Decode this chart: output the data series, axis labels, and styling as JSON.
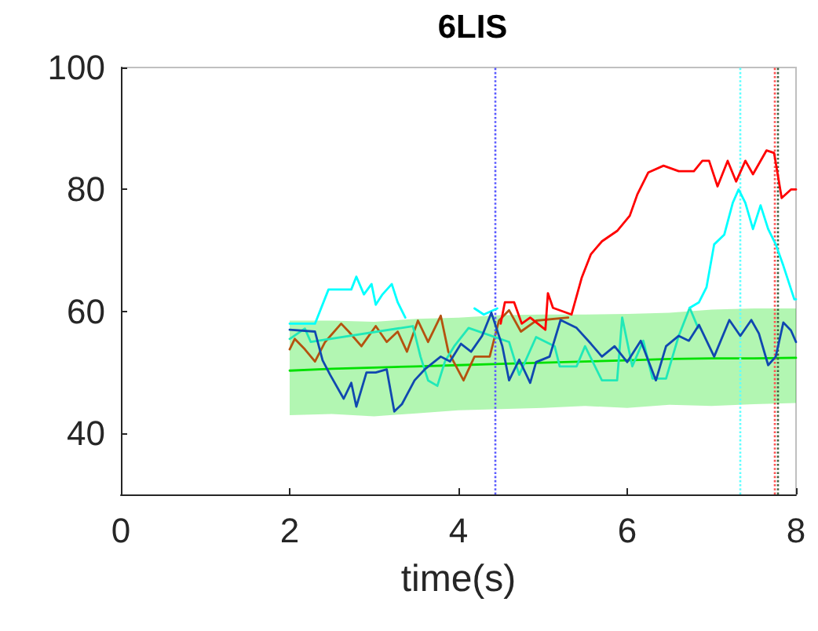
{
  "chart_data": {
    "type": "line",
    "title": "6LIS",
    "xlabel": "time(s)",
    "xlim": [
      0,
      8
    ],
    "xticks": [
      0,
      2,
      4,
      6,
      8
    ],
    "ylim": [
      30,
      100
    ],
    "yticks": [
      40,
      60,
      80,
      100
    ],
    "marker": "none",
    "line_style": "solid",
    "series": [
      {
        "color": "#00e000",
        "x": [
          2,
          2.5,
          3,
          3.5,
          4,
          4.5,
          5,
          5.5,
          6,
          6.5,
          7,
          7.5,
          8
        ],
        "values": [
          50.3,
          50.6,
          50.8,
          51.0,
          51.2,
          51.4,
          51.6,
          51.8,
          52.0,
          52.2,
          52.3,
          52.3,
          52.4
        ],
        "lower": [
          43,
          43.2,
          42.8,
          43.3,
          43.8,
          44,
          44.2,
          44.5,
          44.2,
          44.7,
          44.5,
          44.8,
          45
        ],
        "upper": [
          58.5,
          58.5,
          58.3,
          58.8,
          59,
          59.4,
          59.5,
          59.5,
          59.6,
          59.8,
          60.3,
          60.5,
          60.5
        ]
      },
      {
        "color": "#b5520f",
        "x": [
          2.0,
          2.06,
          2.18,
          2.3,
          2.42,
          2.61,
          2.7,
          2.85,
          3.02,
          3.15,
          3.28,
          3.39,
          3.52,
          3.64,
          3.79,
          3.88,
          4.06,
          4.19,
          4.37,
          4.48,
          4.6,
          4.74,
          4.92,
          5.3
        ],
        "values": [
          53.8,
          55.5,
          53.8,
          51.8,
          55,
          58,
          56.7,
          54.3,
          57.6,
          55,
          56.7,
          53.4,
          58.5,
          55,
          59.3,
          53.4,
          48.7,
          52.6,
          52.6,
          58.5,
          60.2,
          56.7,
          58.5,
          59
        ]
      },
      {
        "color": "#20e8b8",
        "x": [
          2.0,
          2.18,
          2.25,
          3.46,
          3.55,
          3.64,
          3.75,
          3.84,
          3.95,
          4.12,
          4.6,
          4.72,
          4.92,
          5.14,
          5.2,
          5.4,
          5.5,
          5.7,
          5.88,
          5.94,
          6.06,
          6.19,
          6.3,
          6.46,
          6.61,
          6.74,
          6.84
        ],
        "values": [
          55.5,
          57.2,
          55,
          57.6,
          52.6,
          48.7,
          47.8,
          51.8,
          54.3,
          57.3,
          55,
          49.6,
          55.8,
          54.3,
          51,
          51,
          54.3,
          48.7,
          48.7,
          59,
          51,
          55.2,
          49,
          49,
          56,
          60.6,
          57.3
        ]
      },
      {
        "color": "#00ffff",
        "x": [
          2.0,
          2.3,
          2.46,
          2.73,
          2.79,
          2.88,
          2.97,
          3.02,
          3.1,
          3.21,
          3.28,
          3.37,
          3.4,
          4.1,
          4.19,
          4.3,
          4.46,
          4.5,
          6.74,
          6.85,
          6.94,
          7.03,
          7.15,
          7.25,
          7.32,
          7.4,
          7.49,
          7.58,
          7.67,
          7.76,
          7.85,
          7.98,
          8
        ],
        "values": [
          58,
          58,
          63.6,
          63.6,
          65.7,
          62.8,
          64.5,
          61.1,
          62.8,
          64.5,
          61.5,
          59,
          null,
          null,
          60.5,
          59.5,
          60.5,
          null,
          60.6,
          61.5,
          64,
          71,
          72.6,
          77.8,
          80,
          77.8,
          73.5,
          77.4,
          73.5,
          71,
          67.5,
          62,
          62
        ]
      },
      {
        "color": "#1048b0",
        "x": [
          2.0,
          2.3,
          2.39,
          2.48,
          2.64,
          2.73,
          2.79,
          2.91,
          3.02,
          3.15,
          3.24,
          3.33,
          3.48,
          3.6,
          3.79,
          3.9,
          4.03,
          4.15,
          4.28,
          4.39,
          4.52,
          4.6,
          4.72,
          4.85,
          4.92,
          5.08,
          5.21,
          5.4,
          5.57,
          5.7,
          5.85,
          6.0,
          6.16,
          6.34,
          6.46,
          6.61,
          6.73,
          6.85,
          7.03,
          7.21,
          7.34,
          7.47,
          7.56,
          7.67,
          7.76,
          7.85,
          7.94,
          8
        ],
        "values": [
          57,
          56.7,
          52,
          49.6,
          45.7,
          48.3,
          44.4,
          50,
          50,
          50.5,
          43.6,
          44.8,
          48.7,
          50.5,
          52.6,
          51.8,
          54.7,
          53.4,
          56,
          59.8,
          54.3,
          48.7,
          52.1,
          48.3,
          51.7,
          52.6,
          58.6,
          57.3,
          54.7,
          52.6,
          54.3,
          51.7,
          55.2,
          48.7,
          54.3,
          56,
          55.2,
          57.8,
          52.6,
          58.6,
          56,
          58.6,
          56.4,
          51.2,
          52.6,
          58.2,
          56.9,
          55
        ]
      },
      {
        "color": "#ff0000",
        "x": [
          4.5,
          4.55,
          4.66,
          4.75,
          4.85,
          5.03,
          5.06,
          5.12,
          5.34,
          5.46,
          5.57,
          5.7,
          5.88,
          6.03,
          6.12,
          6.25,
          6.43,
          6.61,
          6.79,
          6.89,
          6.97,
          7.07,
          7.19,
          7.29,
          7.4,
          7.49,
          7.65,
          7.74,
          7.83,
          7.94,
          8
        ],
        "values": [
          58,
          61.5,
          61.5,
          58,
          59,
          57,
          63,
          60.6,
          59.5,
          65.5,
          69.4,
          71.5,
          73.2,
          75.7,
          79.2,
          82.8,
          83.9,
          83,
          83,
          84.7,
          84.7,
          80.5,
          84.7,
          81.3,
          84.7,
          82.5,
          86.4,
          86,
          78.6,
          80,
          80
        ]
      }
    ],
    "ref_lines": [
      {
        "axis": "x",
        "value": 4.43,
        "color": "#5a5aff",
        "line_style": "dotted"
      },
      {
        "axis": "x",
        "value": 7.34,
        "color": "#60ffff",
        "line_style": "dotted"
      },
      {
        "axis": "x",
        "value": 7.74,
        "color": "#ff5050",
        "line_style": "dotted"
      },
      {
        "axis": "x",
        "value": 7.78,
        "color": "#406040",
        "line_style": "dotted"
      }
    ]
  }
}
